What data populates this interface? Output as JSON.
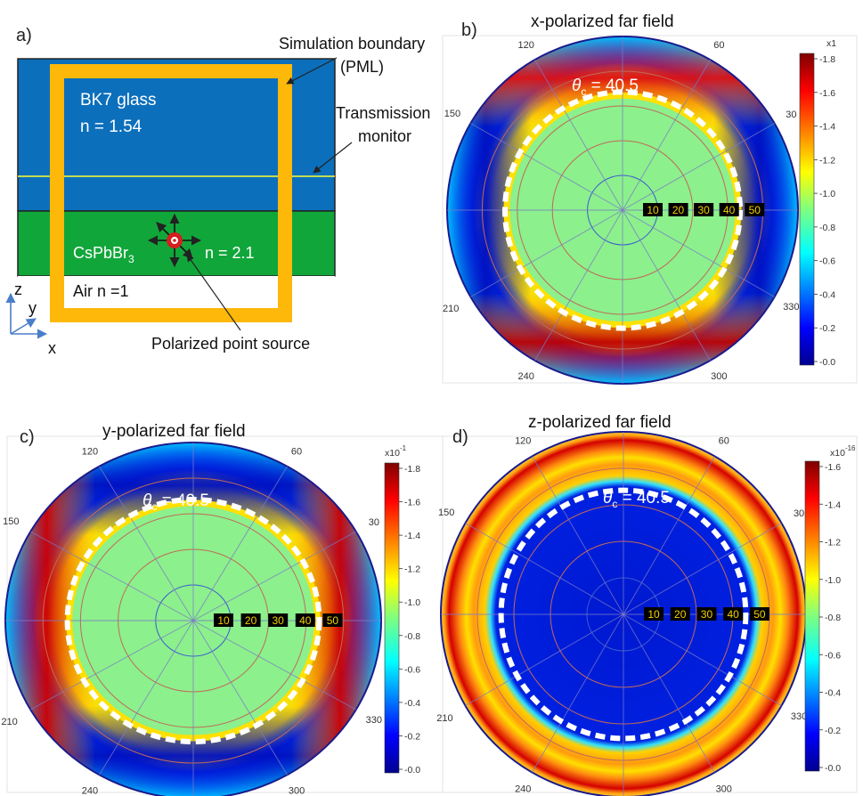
{
  "panel_a": {
    "letter": "a)",
    "boundary_label_1": "Simulation  boundary",
    "boundary_label_2": "(PML)",
    "glass_label": "BK7 glass",
    "glass_index": "n = 1.54",
    "monitor_label_1": "Transmission",
    "monitor_label_2": "monitor",
    "crystal_label": "CsPbBr",
    "crystal_sub": "3",
    "crystal_index": "n = 2.1",
    "air_label": "Air n =1",
    "source_label": "Polarized point source",
    "axis_z": "z",
    "axis_y": "y",
    "axis_x": "x",
    "colors": {
      "glass": "#0b6fbc",
      "crystal": "#11a63a",
      "boundary": "#fdb809",
      "monitor": "#ffff33",
      "source": "#d61e1e"
    }
  },
  "panels": [
    {
      "letter": "b)",
      "title": "x-polarized far field",
      "multiplier": "x1",
      "theta_symbol": "θ",
      "theta_sub": "c",
      "theta_value": " = 40.5",
      "angle_labels": [
        "120",
        "60",
        "150",
        "30",
        "210",
        "330",
        "240",
        "300"
      ],
      "radial_labels": [
        "10",
        "20",
        "30",
        "40",
        "50"
      ],
      "colorbar_ticks": [
        "1.8",
        "1.6",
        "1.4",
        "1.2",
        "1.0",
        "0.8",
        "0.6",
        "0.4",
        "0.2",
        "0.0"
      ]
    },
    {
      "letter": "c)",
      "title": "y-polarized far field",
      "multiplier": "x10",
      "multiplier_exp": "-1",
      "theta_symbol": "θ",
      "theta_sub": "c",
      "theta_value": " = 40.5",
      "angle_labels": [
        "120",
        "60",
        "150",
        "30",
        "210",
        "330",
        "240",
        "300"
      ],
      "radial_labels": [
        "10",
        "20",
        "30",
        "40",
        "50"
      ],
      "colorbar_ticks": [
        "1.8",
        "1.6",
        "1.4",
        "1.2",
        "1.0",
        "0.8",
        "0.6",
        "0.4",
        "0.2",
        "0.0"
      ]
    },
    {
      "letter": "d)",
      "title": "z-polarized far field",
      "multiplier": "x10",
      "multiplier_exp": "-16",
      "theta_symbol": "θ",
      "theta_sub": "c",
      "theta_value": " = 40.5",
      "angle_labels": [
        "120",
        "60",
        "150",
        "30",
        "210",
        "330",
        "240",
        "300"
      ],
      "radial_labels": [
        "10",
        "20",
        "30",
        "40",
        "50"
      ],
      "colorbar_ticks": [
        "1.6",
        "1.4",
        "1.2",
        "1.0",
        "0.8",
        "0.6",
        "0.4",
        "0.2",
        "0.0"
      ]
    }
  ]
}
